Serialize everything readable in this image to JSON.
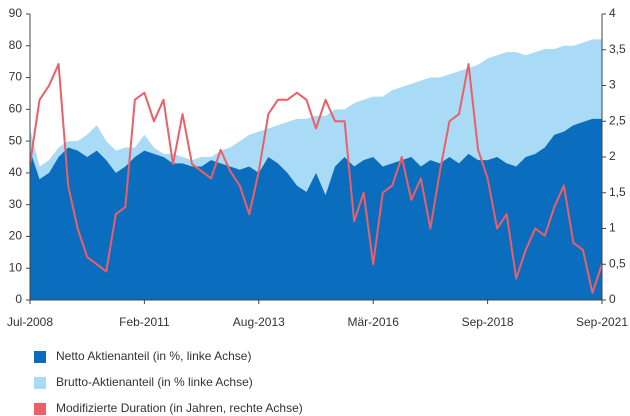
{
  "chart_data": {
    "type": "area",
    "categories": [
      "Jul-2008",
      null,
      null,
      null,
      null,
      null,
      null,
      null,
      null,
      null,
      null,
      null,
      "Feb-2011",
      null,
      null,
      null,
      null,
      null,
      null,
      null,
      null,
      null,
      null,
      null,
      "Aug-2013",
      null,
      null,
      null,
      null,
      null,
      null,
      null,
      null,
      null,
      null,
      null,
      "Mär-2016",
      null,
      null,
      null,
      null,
      null,
      null,
      null,
      null,
      null,
      null,
      null,
      "Sep-2018",
      null,
      null,
      null,
      null,
      null,
      null,
      null,
      null,
      null,
      null,
      null,
      "Sep-2021"
    ],
    "series": [
      {
        "name": "Brutto-Aktienanteil (in % linke Achse)",
        "color": "#a9daf6",
        "type": "area",
        "values": [
          54,
          42,
          44,
          48,
          50,
          50,
          52,
          55,
          50,
          47,
          48,
          48,
          52,
          48,
          46,
          46,
          45,
          44,
          45,
          45,
          47,
          48,
          50,
          52,
          53,
          54,
          55,
          56,
          57,
          57,
          58,
          58,
          60,
          60,
          62,
          63,
          64,
          64,
          66,
          67,
          68,
          69,
          70,
          70,
          71,
          72,
          73,
          74,
          76,
          77,
          78,
          78,
          77,
          78,
          79,
          79,
          80,
          80,
          81,
          82,
          82
        ]
      },
      {
        "name": "Netto Aktienanteil (in %, linke Achse)",
        "color": "#0b6dbd",
        "type": "area",
        "values": [
          47,
          38,
          40,
          45,
          48,
          47,
          45,
          47,
          44,
          40,
          42,
          45,
          47,
          46,
          45,
          43,
          43,
          42,
          42,
          44,
          43,
          42,
          41,
          42,
          40,
          45,
          43,
          40,
          36,
          34,
          40,
          33,
          42,
          45,
          42,
          44,
          45,
          42,
          43,
          44,
          45,
          42,
          44,
          43,
          45,
          43,
          46,
          44,
          44,
          45,
          43,
          42,
          45,
          46,
          48,
          52,
          53,
          55,
          56,
          57,
          57
        ]
      },
      {
        "name": "Modifizierte Duration (in Jahren, rechte Achse)",
        "color": "#ec5f67",
        "type": "line",
        "axis": "y2",
        "values": [
          1.9,
          2.8,
          3.0,
          3.3,
          1.6,
          1.0,
          0.6,
          0.5,
          0.4,
          1.2,
          1.3,
          2.8,
          2.9,
          2.5,
          2.8,
          1.9,
          2.6,
          1.9,
          1.8,
          1.7,
          2.1,
          1.8,
          1.6,
          1.2,
          1.8,
          2.6,
          2.8,
          2.8,
          2.9,
          2.8,
          2.4,
          2.8,
          2.5,
          2.5,
          1.1,
          1.5,
          0.5,
          1.5,
          1.6,
          2.0,
          1.4,
          1.7,
          1.0,
          1.8,
          2.5,
          2.6,
          3.3,
          2.1,
          1.7,
          1.0,
          1.2,
          0.3,
          0.7,
          1.0,
          0.9,
          1.3,
          1.6,
          0.8,
          0.7,
          0.1,
          0.5
        ]
      }
    ],
    "legend_order": [
      1,
      0,
      2
    ],
    "ylim": [
      0,
      90
    ],
    "yticks": [
      0,
      10,
      20,
      30,
      40,
      50,
      60,
      70,
      80,
      90
    ],
    "y2lim": [
      0,
      4
    ],
    "y2ticks": [
      0,
      {
        "value": 0.5,
        "label": "0,5"
      },
      1,
      {
        "value": 1.5,
        "label": "1,5"
      },
      2,
      {
        "value": 2.5,
        "label": "2,5"
      },
      3,
      {
        "value": 3.5,
        "label": "3,5"
      },
      4
    ]
  }
}
